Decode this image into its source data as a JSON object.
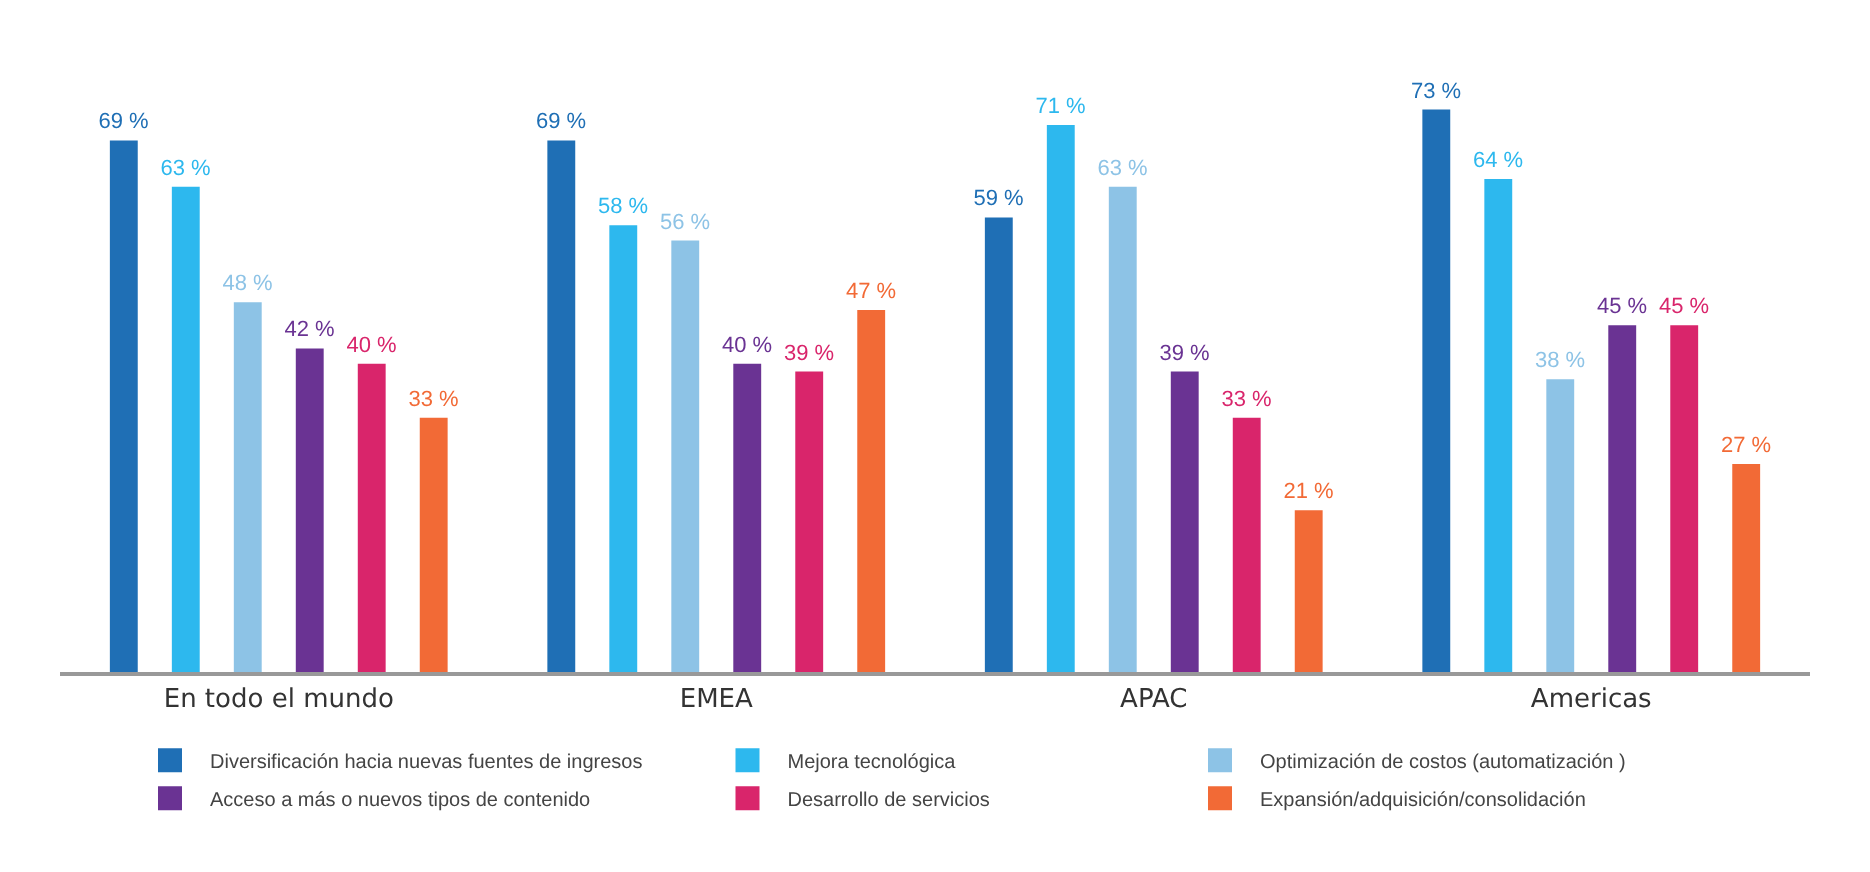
{
  "chart_data": {
    "type": "bar",
    "categories": [
      "En todo el mundo",
      "EMEA",
      "APAC",
      "Americas"
    ],
    "series": [
      {
        "name": "Diversificación hacia nuevas fuentes de ingresos",
        "color": "#1f6fb5",
        "values": [
          69,
          69,
          59,
          73
        ],
        "value_labels": [
          "69 %",
          "69 %",
          "59 %",
          "73 %"
        ]
      },
      {
        "name": "Mejora tecnológica",
        "color": "#2db8ee",
        "values": [
          63,
          58,
          71,
          64
        ],
        "value_labels": [
          "63 %",
          "58 %",
          "71 %",
          "64 %"
        ]
      },
      {
        "name": "Optimización de costos (automatización )",
        "color": "#8dc3e6",
        "values": [
          48,
          56,
          63,
          38
        ],
        "value_labels": [
          "48 %",
          "56 %",
          "63 %",
          "38 %"
        ]
      },
      {
        "name": "Acceso a más o nuevos tipos de contenido",
        "color": "#6a3393",
        "values": [
          42,
          40,
          39,
          45
        ],
        "value_labels": [
          "42 %",
          "40 %",
          "39 %",
          "45 %"
        ]
      },
      {
        "name": "Desarrollo de servicios",
        "color": "#d9256b",
        "values": [
          40,
          39,
          33,
          45
        ],
        "value_labels": [
          "40 %",
          "39 %",
          "33 %",
          "45 %"
        ]
      },
      {
        "name": "Expansión/adquisición/consolidación",
        "color": "#f26a36",
        "values": [
          33,
          47,
          21,
          27
        ],
        "value_labels": [
          "33 %",
          "47 %",
          "21 %",
          "27 %"
        ]
      }
    ],
    "legend": "bottom",
    "grid": false,
    "tick_labels": "x"
  }
}
